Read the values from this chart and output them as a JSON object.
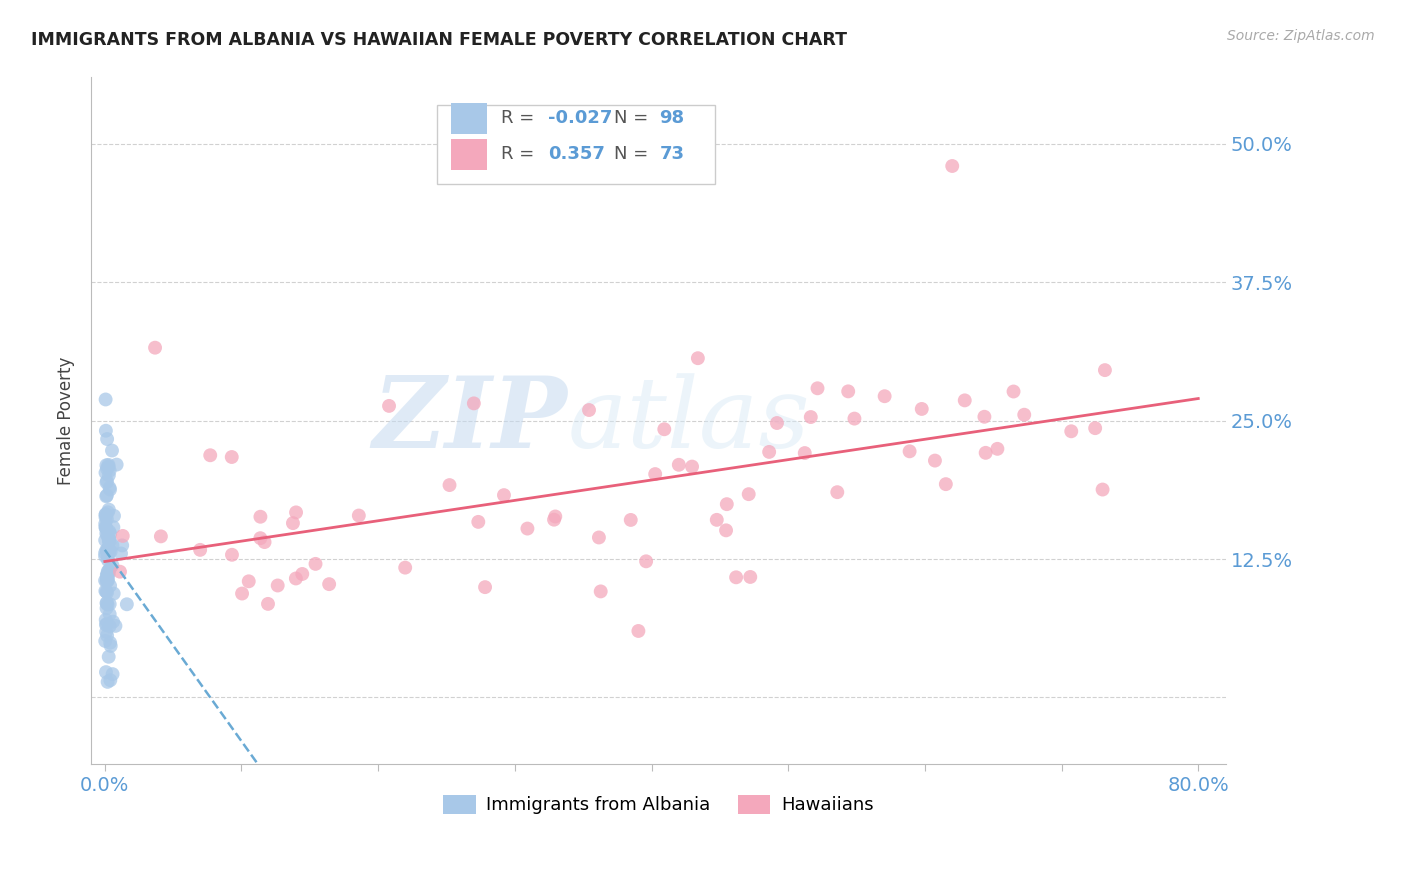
{
  "title": "IMMIGRANTS FROM ALBANIA VS HAWAIIAN FEMALE POVERTY CORRELATION CHART",
  "source": "Source: ZipAtlas.com",
  "ylabel": "Female Poverty",
  "xlim": [
    -0.01,
    0.82
  ],
  "ylim": [
    -0.06,
    0.56
  ],
  "yticks": [
    0.0,
    0.125,
    0.25,
    0.375,
    0.5
  ],
  "ytick_labels": [
    "",
    "12.5%",
    "25.0%",
    "37.5%",
    "50.0%"
  ],
  "xticks": [
    0.0,
    0.1,
    0.2,
    0.3,
    0.4,
    0.5,
    0.6,
    0.7,
    0.8
  ],
  "xtick_labels": [
    "0.0%",
    "",
    "",
    "",
    "",
    "",
    "",
    "",
    "80.0%"
  ],
  "albania_color": "#a8c8e8",
  "hawaii_color": "#f4a8bc",
  "trend_albania_color": "#6aaad4",
  "trend_hawaii_color": "#e8607a",
  "legend_r_albania": "-0.027",
  "legend_n_albania": "98",
  "legend_r_hawaii": "0.357",
  "legend_n_hawaii": "73",
  "watermark_zip": "ZIP",
  "watermark_atlas": "atlas",
  "albania_seed": 123,
  "hawaii_seed": 456
}
